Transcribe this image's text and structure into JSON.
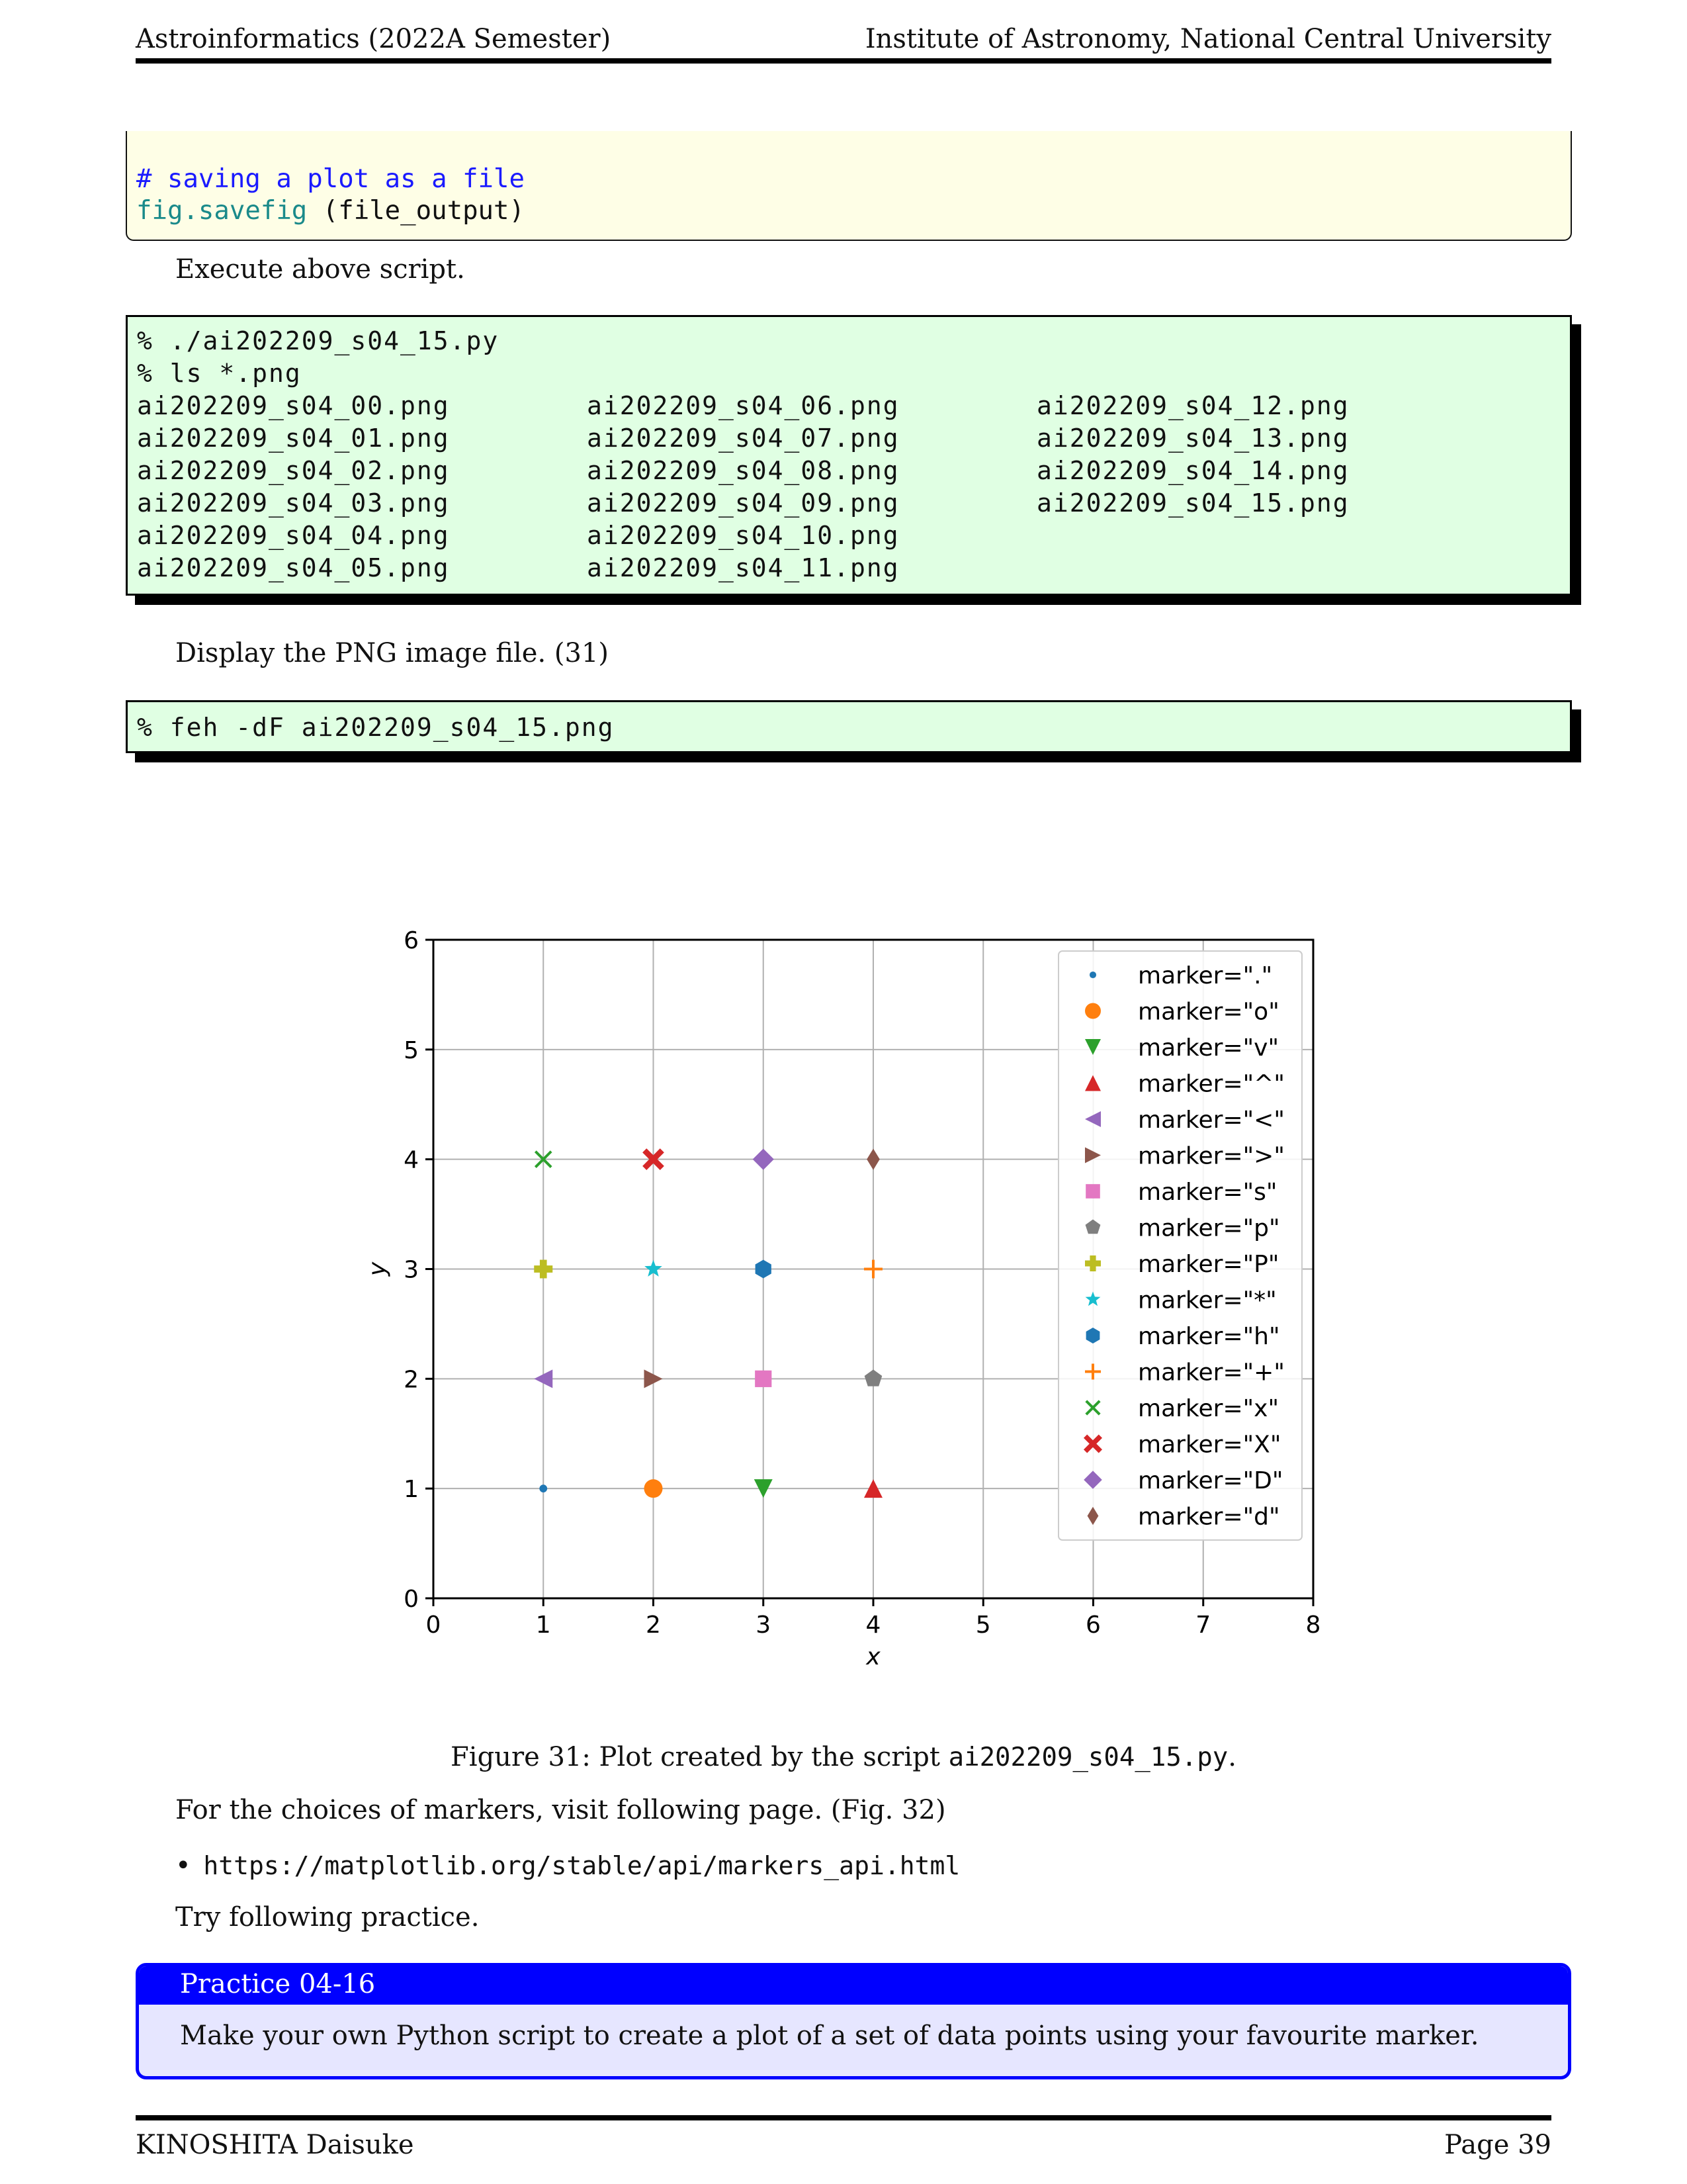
{
  "header": {
    "left": "Astroinformatics (2022A Semester)",
    "right": "Institute of Astronomy, National Central University"
  },
  "code_block": {
    "comment": "# saving a plot as a file",
    "line2_func": "fig.savefig",
    "line2_rest": " (file_output)"
  },
  "text": {
    "execute": "Execute above script.",
    "display": "Display the PNG image file. (31)",
    "choices": "For the choices of markers, visit following page. (Fig. 32)",
    "bullet": "•",
    "url": "https://matplotlib.org/stable/api/markers_api.html",
    "try": "Try following practice."
  },
  "terminal1": {
    "lines": [
      "% ./ai202209_s04_15.py",
      "% ls *.png"
    ],
    "files": [
      [
        "ai202209_s04_00.png",
        "ai202209_s04_06.png",
        "ai202209_s04_12.png"
      ],
      [
        "ai202209_s04_01.png",
        "ai202209_s04_07.png",
        "ai202209_s04_13.png"
      ],
      [
        "ai202209_s04_02.png",
        "ai202209_s04_08.png",
        "ai202209_s04_14.png"
      ],
      [
        "ai202209_s04_03.png",
        "ai202209_s04_09.png",
        "ai202209_s04_15.png"
      ],
      [
        "ai202209_s04_04.png",
        "ai202209_s04_10.png",
        ""
      ],
      [
        "ai202209_s04_05.png",
        "ai202209_s04_11.png",
        ""
      ]
    ]
  },
  "terminal2": {
    "line": "% feh -dF ai202209_s04_15.png"
  },
  "caption": {
    "prefix": "Figure 31: Plot created by the script ",
    "script": "ai202209_s04_15.py",
    "suffix": "."
  },
  "practice": {
    "title": "Practice 04-16",
    "body": "Make your own Python script to create a plot of a set of data points using your favourite marker."
  },
  "footer": {
    "left": "KINOSHITA Daisuke",
    "right": "Page 39"
  },
  "chart_data": {
    "type": "scatter",
    "xlabel": "x",
    "ylabel": "y",
    "xlim": [
      0,
      8
    ],
    "ylim": [
      0,
      6
    ],
    "xticks": [
      0,
      1,
      2,
      3,
      4,
      5,
      6,
      7,
      8
    ],
    "yticks": [
      0,
      1,
      2,
      3,
      4,
      5,
      6
    ],
    "grid": true,
    "legend_position": "top-right",
    "series": [
      {
        "name": "marker=\".\"",
        "marker": "point",
        "color": "#1f77b4",
        "x": 1,
        "y": 1
      },
      {
        "name": "marker=\"o\"",
        "marker": "circle",
        "color": "#ff7f0e",
        "x": 2,
        "y": 1
      },
      {
        "name": "marker=\"v\"",
        "marker": "triangle-down",
        "color": "#2ca02c",
        "x": 3,
        "y": 1
      },
      {
        "name": "marker=\"^\"",
        "marker": "triangle-up",
        "color": "#d62728",
        "x": 4,
        "y": 1
      },
      {
        "name": "marker=\"<\"",
        "marker": "triangle-left",
        "color": "#9467bd",
        "x": 1,
        "y": 2
      },
      {
        "name": "marker=\">\"",
        "marker": "triangle-right",
        "color": "#8c564b",
        "x": 2,
        "y": 2
      },
      {
        "name": "marker=\"s\"",
        "marker": "square",
        "color": "#e377c2",
        "x": 3,
        "y": 2
      },
      {
        "name": "marker=\"p\"",
        "marker": "pentagon",
        "color": "#7f7f7f",
        "x": 4,
        "y": 2
      },
      {
        "name": "marker=\"P\"",
        "marker": "plus-filled",
        "color": "#bcbd22",
        "x": 1,
        "y": 3
      },
      {
        "name": "marker=\"*\"",
        "marker": "star",
        "color": "#17becf",
        "x": 2,
        "y": 3
      },
      {
        "name": "marker=\"h\"",
        "marker": "hexagon",
        "color": "#1f77b4",
        "x": 3,
        "y": 3
      },
      {
        "name": "marker=\"+\"",
        "marker": "plus",
        "color": "#ff7f0e",
        "x": 4,
        "y": 3
      },
      {
        "name": "marker=\"x\"",
        "marker": "x",
        "color": "#2ca02c",
        "x": 1,
        "y": 4
      },
      {
        "name": "marker=\"X\"",
        "marker": "x-filled",
        "color": "#d62728",
        "x": 2,
        "y": 4
      },
      {
        "name": "marker=\"D\"",
        "marker": "diamond",
        "color": "#9467bd",
        "x": 3,
        "y": 4
      },
      {
        "name": "marker=\"d\"",
        "marker": "thin-diamond",
        "color": "#8c564b",
        "x": 4,
        "y": 4
      }
    ]
  }
}
